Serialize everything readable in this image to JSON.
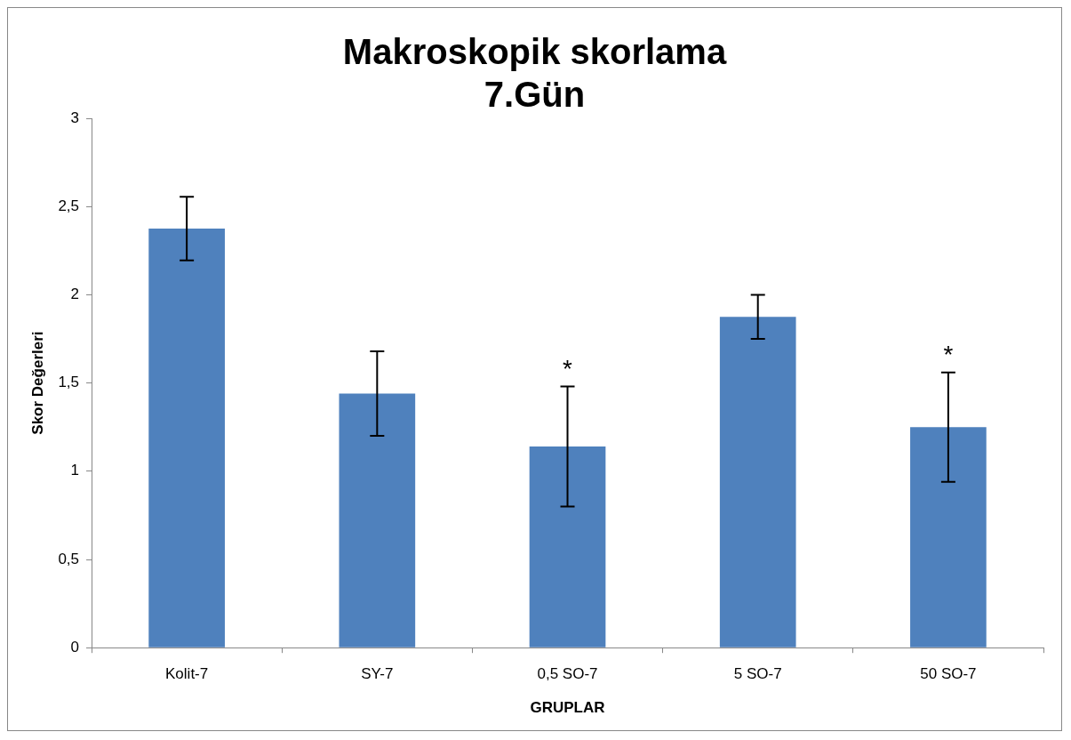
{
  "chart_data": {
    "type": "bar",
    "title": "Makroskopik skorlama",
    "subtitle": "7.Gün",
    "xlabel": "GRUPLAR",
    "ylabel": "Skor Değerleri",
    "categories": [
      "Kolit-7",
      "SY-7",
      "0,5 SO-7",
      "5 SO-7",
      "50 SO-7"
    ],
    "values": [
      2.375,
      1.44,
      1.14,
      1.875,
      1.25
    ],
    "errors": [
      0.18,
      0.24,
      0.34,
      0.125,
      0.31
    ],
    "color": "#4f81bd",
    "ylim": [
      0,
      3
    ],
    "yticks": [
      0,
      {
        "value": 0.5,
        "label": "0,5"
      },
      1,
      {
        "value": 1.5,
        "label": "1,5"
      },
      2,
      {
        "value": 2.5,
        "label": "2,5"
      },
      3
    ],
    "value_labels": [
      null,
      null,
      "*",
      null,
      "*"
    ],
    "grid": false,
    "legend": false
  }
}
